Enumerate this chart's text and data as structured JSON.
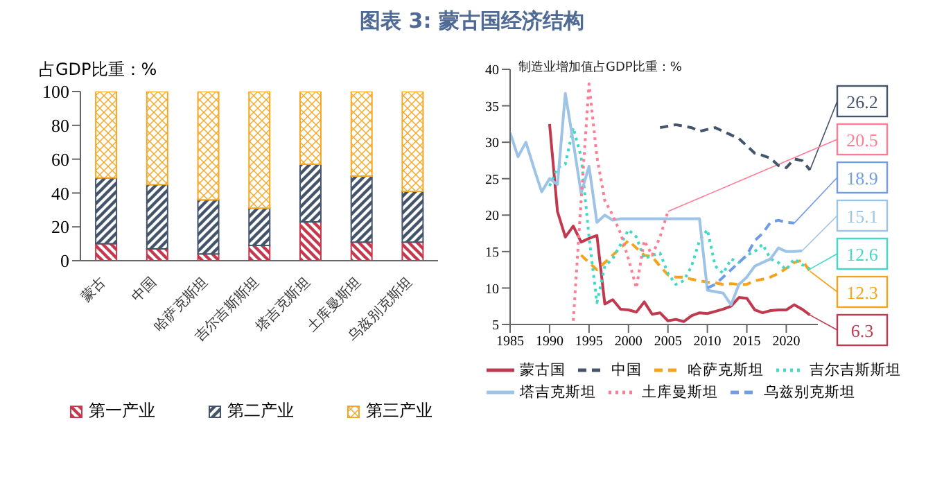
{
  "chart_data": [
    {
      "type": "bar",
      "title": "图表 3: 蒙古国经济结构",
      "ylabel": "占GDP比重：%",
      "stacked": true,
      "legend": "bottom",
      "categories": [
        "蒙古",
        "中国",
        "哈萨克斯坦",
        "吉尔吉斯斯坦",
        "塔吉克斯坦",
        "土库曼斯坦",
        "乌兹别克斯坦"
      ],
      "ylim": [
        0,
        100
      ],
      "yticks": [
        0,
        20,
        40,
        60,
        80,
        100
      ],
      "series": [
        {
          "name": "第一产业",
          "color": "#c8374c",
          "values": [
            10,
            7,
            4,
            9,
            23,
            11,
            11
          ]
        },
        {
          "name": "第二产业",
          "color": "#44546a",
          "values": [
            39,
            38,
            32,
            22,
            34,
            39,
            30
          ]
        },
        {
          "name": "第三产业",
          "color": "#f5a623",
          "values": [
            51,
            55,
            64,
            69,
            43,
            50,
            59
          ]
        }
      ]
    },
    {
      "type": "line",
      "ylabel": "制造业增加值占GDP比重：%",
      "legend": "bottom",
      "xlim": [
        1985,
        2024
      ],
      "xticks": [
        1985,
        1990,
        1995,
        2000,
        2005,
        2010,
        2015,
        2020
      ],
      "ylim": [
        5,
        40
      ],
      "yticks": [
        5,
        10,
        15,
        20,
        25,
        30,
        35,
        40
      ],
      "series": [
        {
          "name": "蒙古国",
          "color": "#c0394e",
          "line_style": "solid",
          "x": [
            1990,
            1991,
            1992,
            1993,
            1994,
            1995,
            1996,
            1997,
            1998,
            1999,
            2000,
            2001,
            2002,
            2003,
            2004,
            2005,
            2006,
            2007,
            2008,
            2009,
            2010,
            2011,
            2012,
            2013,
            2014,
            2015,
            2016,
            2017,
            2018,
            2019,
            2020,
            2021,
            2022,
            2023
          ],
          "values": [
            32.5,
            20.5,
            17,
            18.5,
            16.3,
            16.8,
            17.2,
            7.8,
            8.4,
            7.1,
            7,
            6.7,
            8.1,
            6.4,
            6.6,
            5.5,
            5.7,
            5.4,
            6.2,
            6.6,
            6.5,
            6.8,
            7.1,
            7.5,
            8.7,
            8.6,
            7,
            6.6,
            6.9,
            7,
            7,
            7.7,
            7.1,
            6.3
          ]
        },
        {
          "name": "中国",
          "color": "#44546a",
          "line_style": "dashed",
          "x": [
            2004,
            2006,
            2008,
            2009,
            2011,
            2013,
            2014,
            2015,
            2016,
            2017,
            2018,
            2019,
            2020,
            2021,
            2022,
            2023
          ],
          "values": [
            32,
            32.4,
            32,
            31.5,
            32,
            31,
            30.5,
            29.5,
            28.5,
            28.2,
            27.8,
            26.8,
            26.5,
            27.7,
            27.5,
            26.2
          ]
        },
        {
          "name": "哈萨克斯坦",
          "color": "#f5a31a",
          "line_style": "dashed",
          "x": [
            1994,
            1996,
            1998,
            2000,
            2001,
            2002,
            2003,
            2004,
            2005,
            2006,
            2007,
            2008,
            2009,
            2010,
            2011,
            2012,
            2013,
            2014,
            2015,
            2016,
            2017,
            2018,
            2019,
            2020,
            2021,
            2022,
            2023
          ],
          "values": [
            14.5,
            12.5,
            14.5,
            16.5,
            15.5,
            14.5,
            14.3,
            13,
            11.8,
            11.5,
            11.5,
            11.2,
            11,
            10.8,
            10.7,
            10.5,
            10.6,
            10.5,
            10.5,
            11,
            11.2,
            11.5,
            12,
            12.7,
            13.5,
            13.8,
            12.3
          ]
        },
        {
          "name": "吉尔吉斯斯坦",
          "color": "#40d9c8",
          "line_style": "dotted",
          "x": [
            1990,
            1991,
            1992,
            1993,
            1994,
            1995,
            1996,
            1997,
            1998,
            1999,
            2000,
            2001,
            2002,
            2003,
            2004,
            2005,
            2006,
            2007,
            2008,
            2009,
            2010,
            2011,
            2012,
            2013,
            2014,
            2015,
            2016,
            2017,
            2018,
            2019,
            2020,
            2021,
            2022,
            2023
          ],
          "values": [
            24,
            26.5,
            27,
            32,
            28,
            17,
            8,
            13,
            14,
            16,
            18,
            17,
            14,
            14.5,
            14.8,
            12,
            10.5,
            11,
            13,
            16.5,
            18,
            13,
            12,
            14,
            13.5,
            14.5,
            15,
            16,
            14,
            13.5,
            12.5,
            14,
            13.2,
            12.6
          ]
        },
        {
          "name": "塔吉克斯坦",
          "color": "#9dc3e6",
          "line_style": "solid",
          "x": [
            1985,
            1986,
            1987,
            1988,
            1989,
            1990,
            1991,
            1992,
            1993,
            1994,
            1995,
            1996,
            1997,
            1998,
            1999,
            2009,
            2010,
            2011,
            2012,
            2013,
            2014,
            2015,
            2016,
            2017,
            2018,
            2019,
            2020,
            2021,
            2022
          ],
          "values": [
            31.3,
            28,
            30,
            26.5,
            23.2,
            25,
            24.2,
            36.7,
            30,
            23,
            26.7,
            19,
            20,
            19.3,
            19.5,
            19.5,
            9.7,
            9.5,
            9.3,
            7.7,
            10.5,
            11.5,
            13,
            13.5,
            14,
            15.5,
            15,
            15,
            15.1
          ]
        },
        {
          "name": "土库曼斯坦",
          "color": "#ff7c93",
          "line_style": "dotted",
          "x": [
            1993,
            1994,
            1995,
            1996,
            1997,
            1998,
            1999,
            2000,
            2001,
            2002,
            2003,
            2004,
            2005
          ],
          "values": [
            5.5,
            22,
            38,
            28,
            22,
            20,
            17.5,
            14,
            10,
            16.5,
            14.5,
            17,
            20.5
          ]
        },
        {
          "name": "乌兹别克斯坦",
          "color": "#6f9be8",
          "line_style": "dashed",
          "x": [
            2010,
            2011,
            2012,
            2013,
            2014,
            2015,
            2016,
            2017,
            2018,
            2019,
            2020,
            2021
          ],
          "values": [
            10,
            10.5,
            11.5,
            12.5,
            13.5,
            14.5,
            16.5,
            17.5,
            19,
            19.3,
            19,
            18.9
          ]
        }
      ],
      "annotations": [
        {
          "text": "26.2",
          "x": 2023,
          "y": 26.2
        },
        {
          "text": "20.5",
          "x": 2005,
          "y": 20.5
        },
        {
          "text": "18.9",
          "x": 2021,
          "y": 18.9
        },
        {
          "text": "15.1",
          "x": 2022,
          "y": 15.1
        },
        {
          "text": "12.6",
          "x": 2023,
          "y": 12.6
        },
        {
          "text": "12.3",
          "x": 2023,
          "y": 12.3
        },
        {
          "text": "6.3",
          "x": 2023,
          "y": 6.3
        }
      ]
    }
  ]
}
